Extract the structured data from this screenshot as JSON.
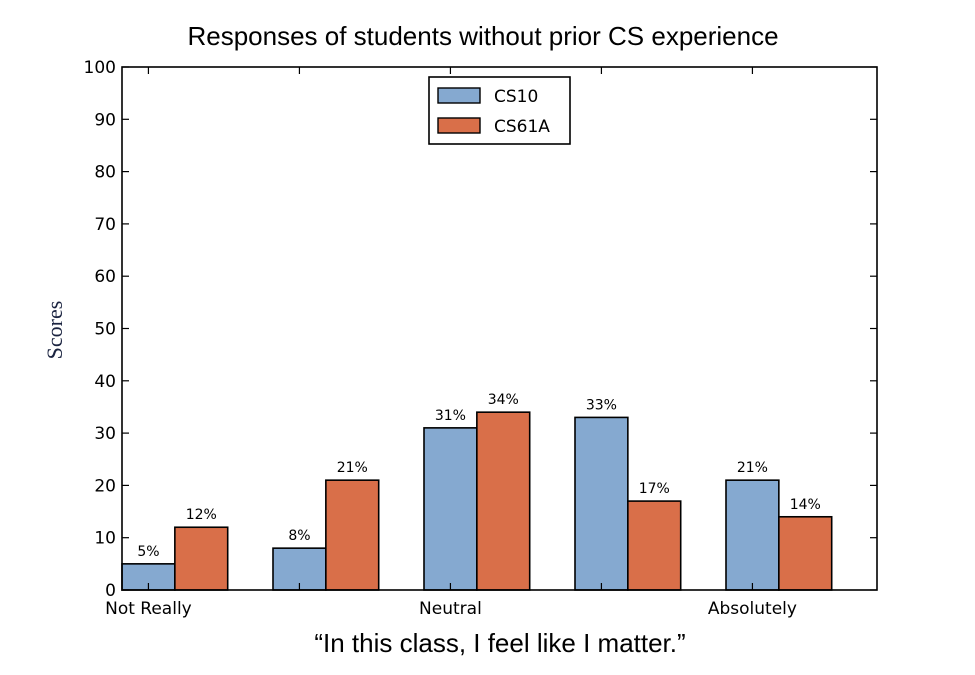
{
  "chart_data": {
    "type": "bar",
    "title": "Responses of students without prior CS experience",
    "xlabel": "“In this class, I feel like I matter.”",
    "ylabel": "Scores",
    "ylim": [
      0,
      100
    ],
    "yticks": [
      0,
      10,
      20,
      30,
      40,
      50,
      60,
      70,
      80,
      90,
      100
    ],
    "categories": [
      "1",
      "2",
      "3",
      "4",
      "5"
    ],
    "xtick_labels": [
      "Not Really",
      "",
      "Neutral",
      "",
      "Absolutely"
    ],
    "series": [
      {
        "name": "CS10",
        "color": "#85a9d0",
        "values": [
          5,
          8,
          31,
          33,
          21
        ],
        "labels": [
          "5%",
          "8%",
          "31%",
          "33%",
          "21%"
        ]
      },
      {
        "name": "CS61A",
        "color": "#d96f49",
        "values": [
          12,
          21,
          34,
          17,
          14
        ],
        "labels": [
          "12%",
          "21%",
          "34%",
          "17%",
          "14%"
        ]
      }
    ],
    "legend": "upper center",
    "grid": false
  }
}
